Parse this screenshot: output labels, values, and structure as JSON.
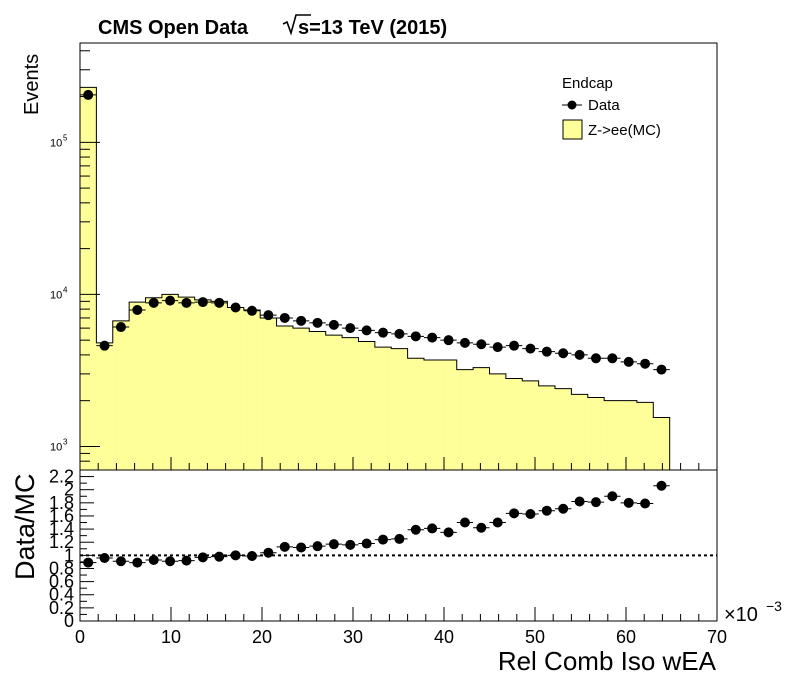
{
  "title": {
    "prefix": "CMS Open Data",
    "energy": "s=13 TeV (2015)"
  },
  "legend": {
    "header": "Endcap",
    "data_label": "Data",
    "mc_label": "Z->ee(MC)"
  },
  "colors": {
    "mc_fill": "#ffff99",
    "axis": "#000000"
  },
  "chart_data": [
    {
      "type": "bar",
      "subtype": "histogram with data points, log y",
      "ylabel": "Events",
      "yscale": "log",
      "ylim": [
        700,
        450000
      ],
      "xlim": [
        0,
        70
      ],
      "y_ticks": [
        1000,
        10000,
        100000
      ],
      "bin_width": 1.8,
      "x": [
        0.9,
        2.7,
        4.5,
        6.3,
        8.1,
        9.9,
        11.7,
        13.5,
        15.3,
        17.1,
        18.9,
        20.7,
        22.5,
        24.3,
        26.1,
        27.9,
        29.7,
        31.5,
        33.3,
        35.1,
        36.9,
        38.7,
        40.5,
        42.3,
        44.1,
        45.9,
        47.7,
        49.5,
        51.3,
        53.1,
        54.9,
        56.7,
        58.5,
        60.3,
        62.1,
        63.9
      ],
      "series": [
        {
          "name": "Z->ee(MC)",
          "kind": "hist",
          "values": [
            230000,
            4800,
            6700,
            8900,
            9500,
            10000,
            9600,
            9200,
            9000,
            8200,
            7900,
            7000,
            6200,
            6000,
            5700,
            5400,
            5200,
            4900,
            4500,
            4400,
            3800,
            3700,
            3700,
            3200,
            3300,
            3000,
            2800,
            2700,
            2500,
            2400,
            2200,
            2100,
            2000,
            2000,
            1950,
            1550
          ]
        },
        {
          "name": "Data",
          "kind": "points",
          "values": [
            205000,
            4600,
            6100,
            7900,
            8800,
            9100,
            8800,
            8900,
            8800,
            8200,
            7800,
            7300,
            7000,
            6700,
            6500,
            6300,
            6000,
            5800,
            5600,
            5500,
            5300,
            5200,
            5000,
            4800,
            4700,
            4500,
            4600,
            4400,
            4200,
            4100,
            4000,
            3800,
            3800,
            3600,
            3500,
            3200
          ]
        }
      ]
    },
    {
      "type": "scatter",
      "subtype": "ratio panel",
      "xlabel": "Rel  Comb  Iso  wEA",
      "ylabel": "Data/MC",
      "x_exponent": "×10",
      "x_exponent_power": "−3",
      "xlim": [
        0,
        70
      ],
      "ylim": [
        0,
        2.3
      ],
      "reference_line": 1,
      "x_ticks": [
        0,
        10,
        20,
        30,
        40,
        50,
        60,
        70
      ],
      "y_ticks": [
        "0",
        "0.2",
        "0.4",
        "0.6",
        "0.8",
        "1",
        "1.2",
        "1.4",
        "1.6",
        "1.8",
        "2",
        "2.2"
      ],
      "x": [
        0.9,
        2.7,
        4.5,
        6.3,
        8.1,
        9.9,
        11.7,
        13.5,
        15.3,
        17.1,
        18.9,
        20.7,
        22.5,
        24.3,
        26.1,
        27.9,
        29.7,
        31.5,
        33.3,
        35.1,
        36.9,
        38.7,
        40.5,
        42.3,
        44.1,
        45.9,
        47.7,
        49.5,
        51.3,
        53.1,
        54.9,
        56.7,
        58.5,
        60.3,
        62.1,
        63.9
      ],
      "values": [
        0.89,
        0.96,
        0.91,
        0.89,
        0.93,
        0.91,
        0.92,
        0.97,
        0.98,
        1.0,
        0.99,
        1.04,
        1.13,
        1.12,
        1.14,
        1.17,
        1.16,
        1.18,
        1.24,
        1.25,
        1.39,
        1.41,
        1.35,
        1.5,
        1.42,
        1.5,
        1.64,
        1.63,
        1.68,
        1.71,
        1.82,
        1.81,
        1.9,
        1.8,
        1.79,
        2.06
      ]
    }
  ]
}
